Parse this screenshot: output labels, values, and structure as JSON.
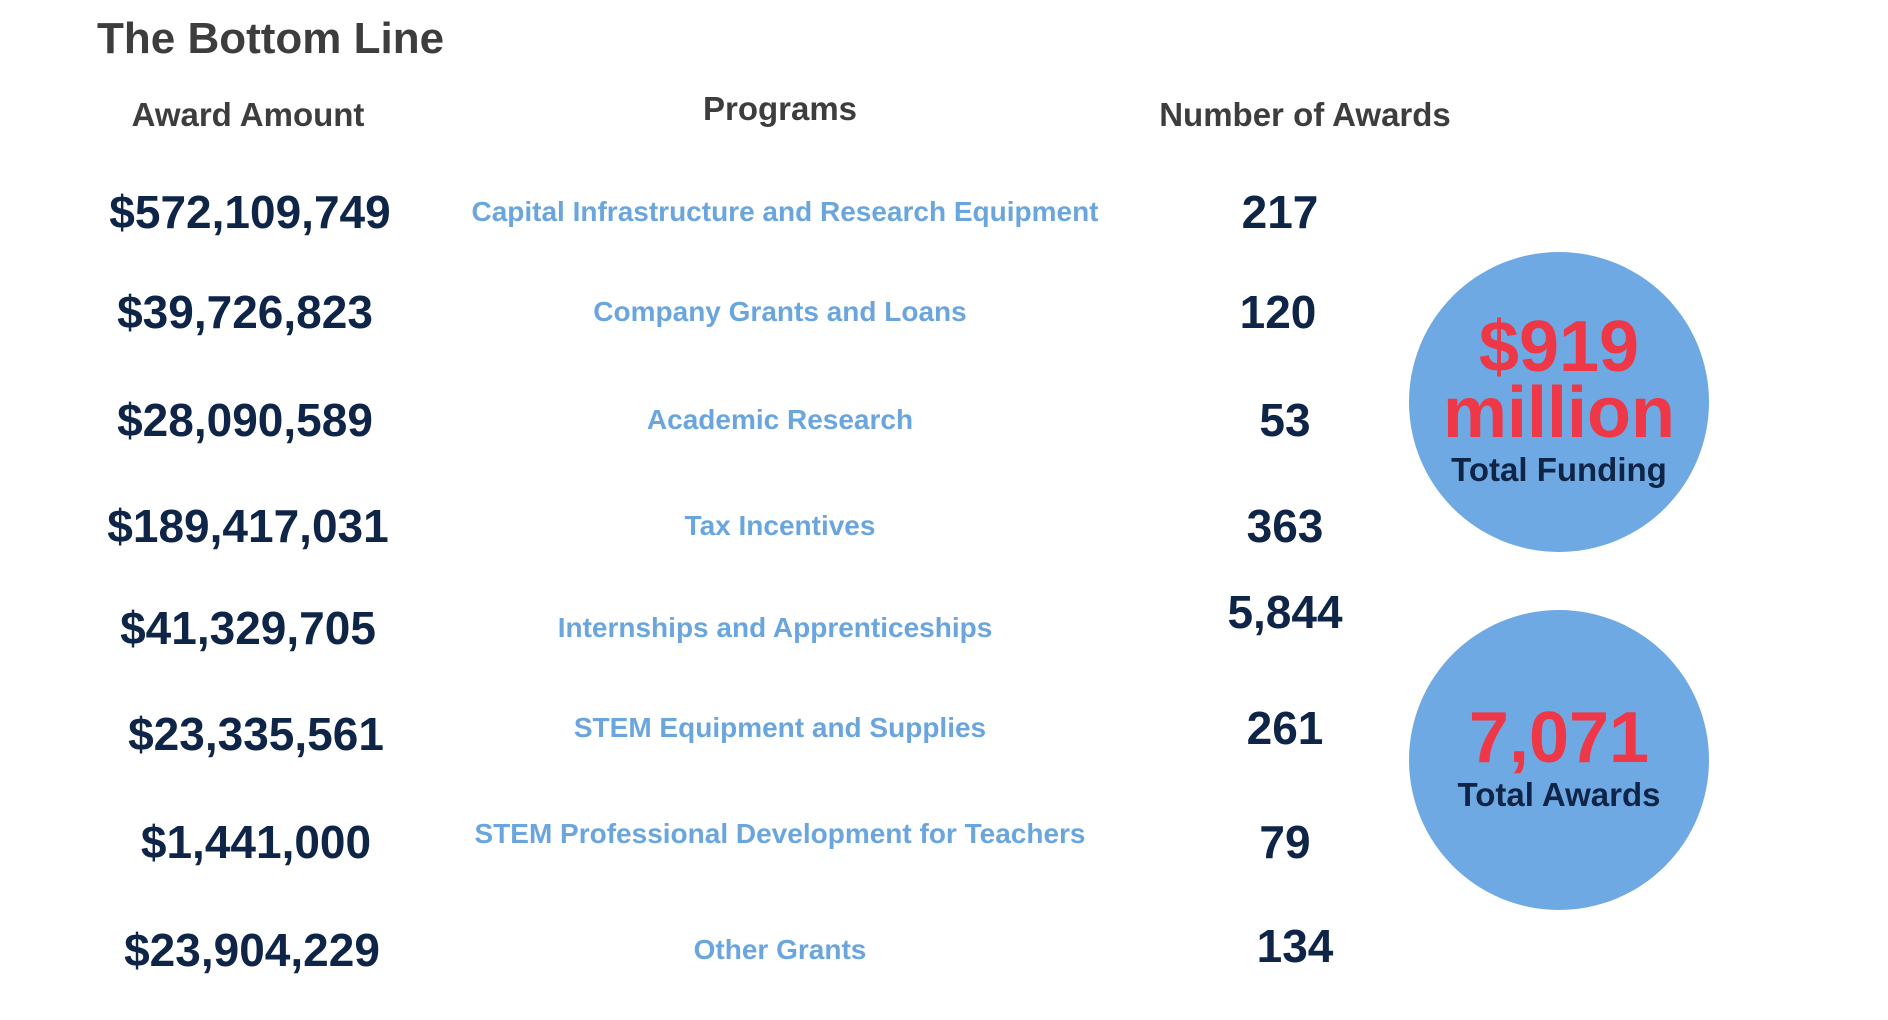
{
  "title": "The Bottom Line",
  "headers": {
    "amount": "Award Amount",
    "programs": "Programs",
    "count": "Number of Awards"
  },
  "rows": [
    {
      "amount": "$572,109,749",
      "program": "Capital Infrastructure and Research Equipment",
      "count": "217"
    },
    {
      "amount": "$39,726,823",
      "program": "Company Grants and Loans",
      "count": "120"
    },
    {
      "amount": "$28,090,589",
      "program": "Academic Research",
      "count": "53"
    },
    {
      "amount": "$189,417,031",
      "program": "Tax Incentives",
      "count": "363"
    },
    {
      "amount": "$41,329,705",
      "program": "Internships and Apprenticeships",
      "count": "5,844"
    },
    {
      "amount": "$23,335,561",
      "program": "STEM Equipment and Supplies",
      "count": "261"
    },
    {
      "amount": "$1,441,000",
      "program": "STEM Professional Development for Teachers",
      "count": "79"
    },
    {
      "amount": "$23,904,229",
      "program": "Other Grants",
      "count": "134"
    }
  ],
  "summary": {
    "funding_value": "$919",
    "funding_unit": "million",
    "funding_label": "Total Funding",
    "awards_value": "7,071",
    "awards_label": "Total Awards"
  },
  "colors": {
    "amount_text": "#0f2548",
    "program_text": "#6aa6dd",
    "circle_fill": "#6fa9e3",
    "highlight_red": "#ee3747",
    "heading_text": "#3d3d3d"
  }
}
